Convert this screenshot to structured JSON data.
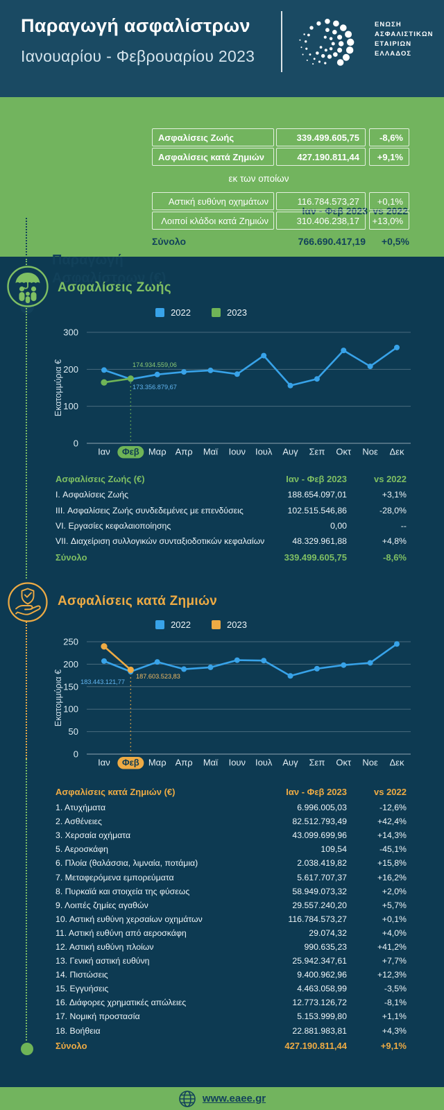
{
  "colors": {
    "navy_bg": "#0d3a52",
    "header_bg": "#1a4a63",
    "green": "#72b45e",
    "green_line": "#6fb457",
    "green_text": "#7fbf63",
    "blue_line": "#38a3e9",
    "gold": "#eeab44",
    "dark_text_on_green": "#12415a"
  },
  "header": {
    "title": "Παραγωγή ασφαλίστρων",
    "subtitle": "Ιανουαρίου - Φεβρουαρίου 2023",
    "org_lines": [
      "ΕΝΩΣΗ",
      "ΑΣΦΑΛΙΣΤΙΚΩΝ",
      "ΕΤΑΙΡΙΩΝ",
      "ΕΛΛΑΔΟΣ"
    ]
  },
  "summary": {
    "side_title_line1": "Παραγωγή",
    "side_title_line2": "Ασφαλίστρων (€)",
    "col_period": "Ιαν - Φεβ 2023",
    "col_vs": "vs 2022",
    "rows": [
      {
        "label": "Ασφαλίσεις Ζωής",
        "value": "339.499.605,75",
        "pct": "-8,6%"
      },
      {
        "label": "Ασφαλίσεις κατά Ζημιών",
        "value": "427.190.811,44",
        "pct": "+9,1%"
      }
    ],
    "subnote": "εκ των οποίων",
    "subrows": [
      {
        "label": "Αστική ευθύνη οχημάτων",
        "value": "116.784.573,27",
        "pct": "+0,1%"
      },
      {
        "label": "Λοιποί κλάδοι κατά Ζημιών",
        "value": "310.406.238,17",
        "pct": "+13,0%"
      }
    ],
    "total": {
      "label": "Σύνολο",
      "value": "766.690.417,19",
      "pct": "+0,5%"
    }
  },
  "life_section": {
    "heading": "Ασφαλίσεις Ζωής",
    "table": {
      "title": "Ασφαλίσεις Ζωής (€)",
      "col_period": "Ιαν - Φεβ 2023",
      "col_vs": "vs 2022",
      "rows": [
        {
          "label": "I. Ασφαλίσεις Ζωής",
          "value": "188.654.097,01",
          "pct": "+3,1%"
        },
        {
          "label": "III. Ασφαλίσεις Ζωής συνδεδεμένες με επενδύσεις",
          "value": "102.515.546,86",
          "pct": "-28,0%"
        },
        {
          "label": "VI. Εργασίες κεφαλαιοποίησης",
          "value": "0,00",
          "pct": "--"
        },
        {
          "label": "VII. Διαχείριση συλλογικών συνταξιοδοτικών κεφαλαίων",
          "value": "48.329.961,88",
          "pct": "+4,8%"
        }
      ],
      "total": {
        "label": "Σύνολο",
        "value": "339.499.605,75",
        "pct": "-8,6%"
      }
    }
  },
  "nonlife_section": {
    "heading": "Ασφαλίσεις κατά Ζημιών",
    "table": {
      "title": "Ασφαλίσεις κατά Ζημιών (€)",
      "col_period": "Ιαν - Φεβ 2023",
      "col_vs": "vs 2022",
      "rows": [
        {
          "label": "1. Ατυχήματα",
          "value": "6.996.005,03",
          "pct": "-12,6%"
        },
        {
          "label": "2. Ασθένειες",
          "value": "82.512.793,49",
          "pct": "+42,4%"
        },
        {
          "label": "3. Χερσαία οχήματα",
          "value": "43.099.699,96",
          "pct": "+14,3%"
        },
        {
          "label": "5. Αεροσκάφη",
          "value": "109,54",
          "pct": "-45,1%"
        },
        {
          "label": "6. Πλοία (θαλάσσια, λιμναία, ποτάμια)",
          "value": "2.038.419,82",
          "pct": "+15,8%"
        },
        {
          "label": "7. Μεταφερόμενα εμπορεύματα",
          "value": "5.617.707,37",
          "pct": "+16,2%"
        },
        {
          "label": "8. Πυρκαϊά και στοιχεία της φύσεως",
          "value": "58.949.073,32",
          "pct": "+2,0%"
        },
        {
          "label": "9. Λοιπές ζημίες αγαθών",
          "value": "29.557.240,20",
          "pct": "+5,7%"
        },
        {
          "label": "10. Αστική ευθύνη χερσαίων οχημάτων",
          "value": "116.784.573,27",
          "pct": "+0,1%"
        },
        {
          "label": "11. Αστική ευθύνη από αεροσκάφη",
          "value": "29.074,32",
          "pct": "+4,0%"
        },
        {
          "label": "12. Αστική ευθύνη πλοίων",
          "value": "990.635,23",
          "pct": "+41,2%"
        },
        {
          "label": "13. Γενική αστική ευθύνη",
          "value": "25.942.347,61",
          "pct": "+7,7%"
        },
        {
          "label": "14. Πιστώσεις",
          "value": "9.400.962,96",
          "pct": "+12,3%"
        },
        {
          "label": "15. Εγγυήσεις",
          "value": "4.463.058,99",
          "pct": "-3,5%"
        },
        {
          "label": "16. Διάφορες χρηματικές απώλειες",
          "value": "12.773.126,72",
          "pct": "-8,1%"
        },
        {
          "label": "17. Νομική προστασία",
          "value": "5.153.999,80",
          "pct": "+1,1%"
        },
        {
          "label": "18. Βοήθεια",
          "value": "22.881.983,81",
          "pct": "+4,3%"
        }
      ],
      "total": {
        "label": "Σύνολο",
        "value": "427.190.811,44",
        "pct": "+9,1%"
      }
    }
  },
  "chart_data": [
    {
      "type": "line",
      "title": "Ασφαλίσεις Ζωής",
      "ylabel": "Εκατομμύρια €",
      "categories": [
        "Ιαν",
        "Φεβ",
        "Μαρ",
        "Απρ",
        "Μαϊ",
        "Ιουν",
        "Ιουλ",
        "Αυγ",
        "Σεπ",
        "Οκτ",
        "Νοε",
        "Δεκ"
      ],
      "ylim": [
        0,
        300
      ],
      "yticks": [
        0,
        100,
        200,
        300
      ],
      "grid": true,
      "legend_position": "top",
      "highlight_month": "Φεβ",
      "highlight_index": 1,
      "series": [
        {
          "name": "2022",
          "color": "#38a3e9",
          "values": [
            198,
            173.36,
            186,
            193,
            197,
            187,
            237,
            156,
            174,
            251,
            208,
            259
          ]
        },
        {
          "name": "2023",
          "color": "#6fb457",
          "values": [
            164.6,
            174.93
          ]
        }
      ],
      "annotations": [
        {
          "text": "174.934.559,06",
          "color": "#8cc973"
        },
        {
          "text": "173.356.879,67",
          "color": "#62b5f0"
        }
      ]
    },
    {
      "type": "line",
      "title": "Ασφαλίσεις κατά Ζημιών",
      "ylabel": "Εκατομμύρια €",
      "categories": [
        "Ιαν",
        "Φεβ",
        "Μαρ",
        "Απρ",
        "Μαϊ",
        "Ιουν",
        "Ιουλ",
        "Αυγ",
        "Σεπ",
        "Οκτ",
        "Νοε",
        "Δεκ"
      ],
      "ylim": [
        0,
        250
      ],
      "yticks": [
        0,
        50,
        100,
        150,
        200,
        250
      ],
      "grid": true,
      "legend_position": "top",
      "highlight_month": "Φεβ",
      "highlight_index": 1,
      "series": [
        {
          "name": "2022",
          "color": "#38a3e9",
          "values": [
            207,
            183.44,
            205,
            189,
            193,
            209,
            208,
            174,
            190,
            198,
            203,
            245
          ]
        },
        {
          "name": "2023",
          "color": "#eeab44",
          "values": [
            239.59,
            187.6
          ]
        }
      ],
      "annotations": [
        {
          "text": "183.443.121,77",
          "color": "#62b5f0"
        },
        {
          "text": "187.603.523,83",
          "color": "#f2bb62"
        }
      ]
    }
  ],
  "footer": {
    "url": "www.eaee.gr"
  }
}
